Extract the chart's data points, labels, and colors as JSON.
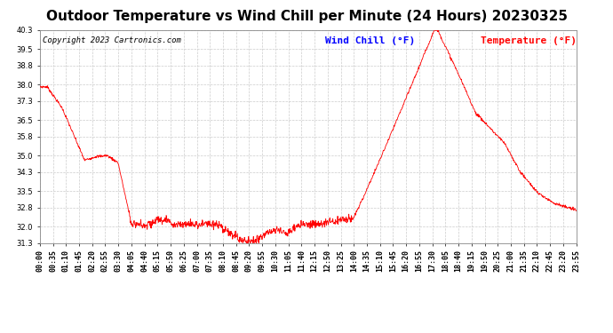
{
  "title": "Outdoor Temperature vs Wind Chill per Minute (24 Hours) 20230325",
  "copyright": "Copyright 2023 Cartronics.com",
  "legend_wind_chill": "Wind Chill (°F)",
  "legend_temperature": "Temperature (°F)",
  "line_color": "#ff0000",
  "wind_chill_color": "#0000ff",
  "temperature_color": "#ff0000",
  "bg_color": "#ffffff",
  "plot_bg_color": "#ffffff",
  "grid_color": "#cccccc",
  "ylim": [
    31.3,
    40.3
  ],
  "yticks": [
    31.3,
    32.0,
    32.8,
    33.5,
    34.3,
    35.0,
    35.8,
    36.5,
    37.3,
    38.0,
    38.8,
    39.5,
    40.3
  ],
  "xtick_labels": [
    "00:00",
    "00:35",
    "01:10",
    "01:45",
    "02:20",
    "02:55",
    "03:30",
    "04:05",
    "04:40",
    "05:15",
    "05:50",
    "06:25",
    "07:00",
    "07:35",
    "08:10",
    "08:45",
    "09:20",
    "09:55",
    "10:30",
    "11:05",
    "11:40",
    "12:15",
    "12:50",
    "13:25",
    "14:00",
    "14:35",
    "15:10",
    "15:45",
    "16:20",
    "16:55",
    "17:30",
    "18:05",
    "18:40",
    "19:15",
    "19:50",
    "20:25",
    "21:00",
    "21:35",
    "22:10",
    "22:45",
    "23:20",
    "23:55"
  ],
  "title_fontsize": 11,
  "tick_fontsize": 6,
  "copyright_fontsize": 6.5,
  "legend_fontsize": 8
}
